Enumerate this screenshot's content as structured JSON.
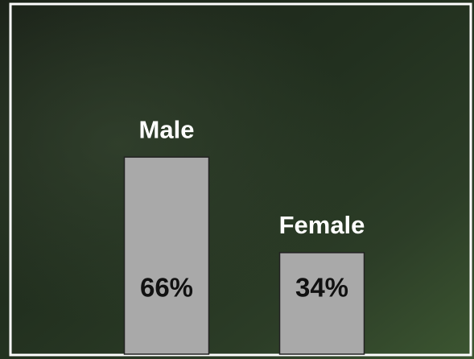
{
  "chart_data": {
    "type": "bar",
    "categories": [
      "Male",
      "Female"
    ],
    "values": [
      66,
      34
    ],
    "value_labels": [
      "66%",
      "34%"
    ],
    "color": "#a9a9a9"
  }
}
